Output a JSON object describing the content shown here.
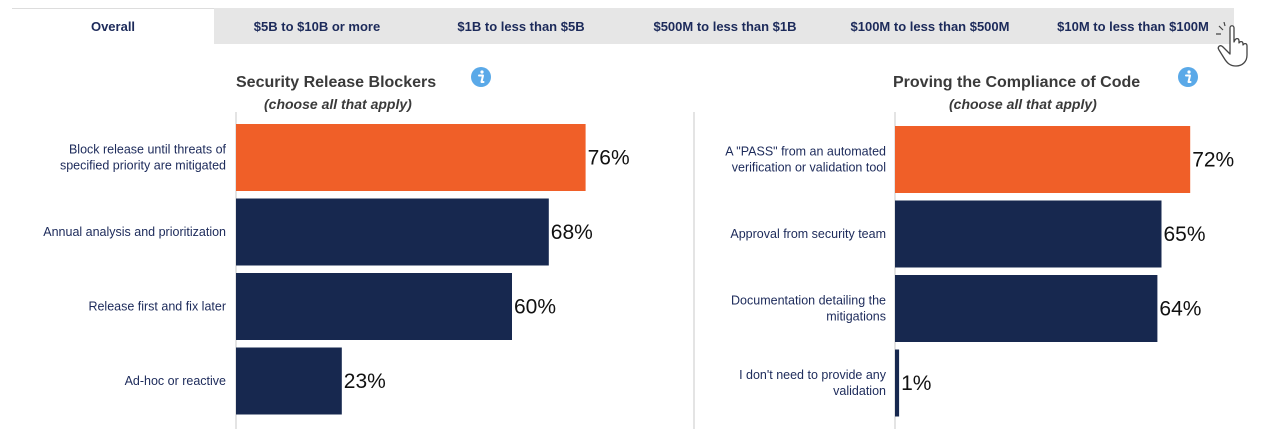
{
  "tabs": [
    {
      "label": "Overall",
      "active": true
    },
    {
      "label": "$5B to $10B or more",
      "active": false
    },
    {
      "label": "$1B to less than $5B",
      "active": false
    },
    {
      "label": "$500M to less than $1B",
      "active": false
    },
    {
      "label": "$100M to less than $500M",
      "active": false
    },
    {
      "label": "$10M to less than $100M",
      "active": false
    }
  ],
  "colors": {
    "highlight": "#f05f28",
    "bar": "#17284f",
    "axis": "#c8c8c8",
    "info": "#5aa9e8"
  },
  "icons": {
    "info": "info-icon",
    "cursor": "hand-pointer-icon"
  },
  "chart_data": [
    {
      "type": "bar",
      "orientation": "horizontal",
      "title": "Security Release Blockers",
      "subtitle": "(choose all that apply)",
      "categories": [
        [
          "Block release until threats of",
          "specified priority are mitigated"
        ],
        [
          "Annual analysis and prioritization"
        ],
        [
          "Release first and fix later"
        ],
        [
          "Ad-hoc or reactive"
        ]
      ],
      "values": [
        76,
        68,
        60,
        23
      ],
      "value_labels": [
        "76%",
        "68%",
        "60%",
        "23%"
      ],
      "highlight_index": 0,
      "xlim": [
        0,
        100
      ],
      "unit": "%"
    },
    {
      "type": "bar",
      "orientation": "horizontal",
      "title": "Proving the Compliance of Code",
      "subtitle": "(choose all that apply)",
      "categories": [
        [
          "A \"PASS\" from an automated",
          "verification or validation tool"
        ],
        [
          "Approval from security team"
        ],
        [
          "Documentation detailing the",
          "mitigations"
        ],
        [
          "I don't need to provide any",
          "validation"
        ]
      ],
      "values": [
        72,
        65,
        64,
        1
      ],
      "value_labels": [
        "72%",
        "65%",
        "64%",
        "1%"
      ],
      "highlight_index": 0,
      "xlim": [
        0,
        100
      ],
      "unit": "%"
    }
  ]
}
